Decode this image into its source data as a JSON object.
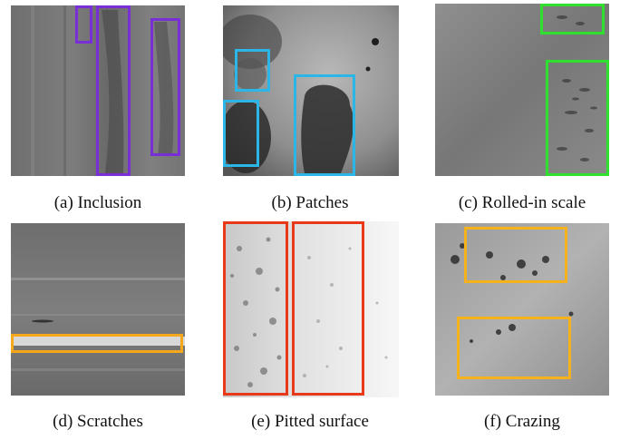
{
  "captions": [
    "(a) Inclusion",
    "(b) Patches",
    "(c) Rolled-in scale",
    "(d) Scratches",
    "(e) Pitted surface",
    "(f) Crazing"
  ],
  "box_colors": {
    "inclusion": "#7a2ed6",
    "patches": "#2bb6e8",
    "rolled_in_scale": "#2fe02f",
    "scratches": "#f5a81c",
    "pitted_surface": "#e8391a",
    "crazing": "#f5b21c"
  }
}
